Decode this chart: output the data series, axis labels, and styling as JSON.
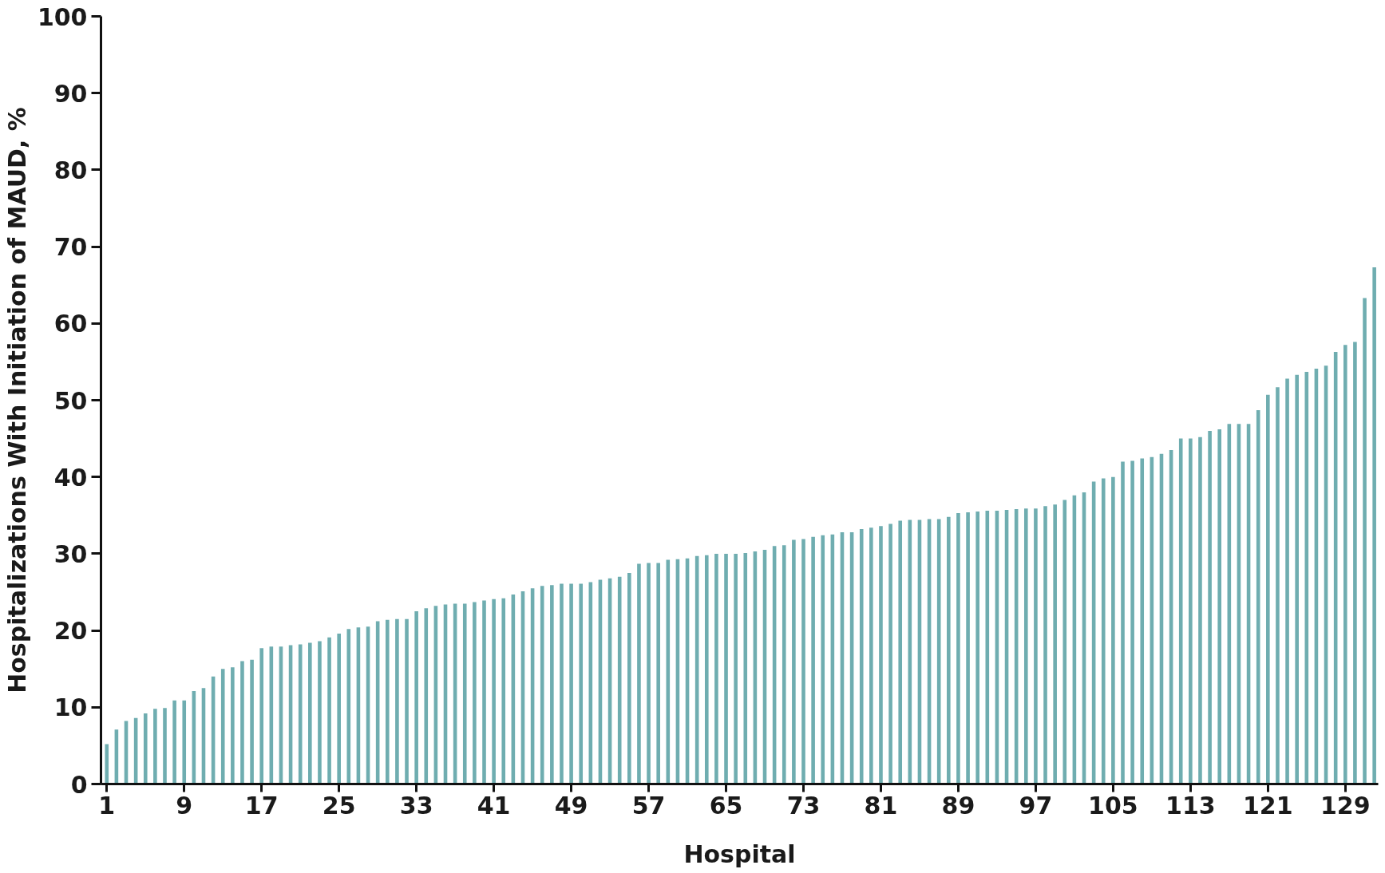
{
  "chart_data": {
    "type": "bar",
    "xlabel": "Hospital",
    "ylabel": "Hospitalizations With Initiation of MAUD, %",
    "x": [
      1,
      2,
      3,
      4,
      5,
      6,
      7,
      8,
      9,
      10,
      11,
      12,
      13,
      14,
      15,
      16,
      17,
      18,
      19,
      20,
      21,
      22,
      23,
      24,
      25,
      26,
      27,
      28,
      29,
      30,
      31,
      32,
      33,
      34,
      35,
      36,
      37,
      38,
      39,
      40,
      41,
      42,
      43,
      44,
      45,
      46,
      47,
      48,
      49,
      50,
      51,
      52,
      53,
      54,
      55,
      56,
      57,
      58,
      59,
      60,
      61,
      62,
      63,
      64,
      65,
      66,
      67,
      68,
      69,
      70,
      71,
      72,
      73,
      74,
      75,
      76,
      77,
      78,
      79,
      80,
      81,
      82,
      83,
      84,
      85,
      86,
      87,
      88,
      89,
      90,
      91,
      92,
      93,
      94,
      95,
      96,
      97,
      98,
      99,
      100,
      101,
      102,
      103,
      104,
      105,
      106,
      107,
      108,
      109,
      110,
      111,
      112,
      113,
      114,
      115,
      116,
      117,
      118,
      119,
      120,
      121,
      122,
      123,
      124,
      125,
      126,
      127,
      128,
      129,
      130,
      131,
      132
    ],
    "values": [
      5.2,
      7.1,
      8.2,
      8.6,
      9.2,
      9.8,
      9.9,
      10.9,
      10.9,
      12.1,
      12.5,
      14.0,
      15.0,
      15.2,
      16.0,
      16.2,
      17.7,
      17.9,
      17.9,
      18.1,
      18.2,
      18.4,
      18.6,
      19.1,
      19.6,
      20.2,
      20.4,
      20.5,
      21.2,
      21.4,
      21.5,
      21.5,
      22.5,
      22.9,
      23.2,
      23.4,
      23.5,
      23.5,
      23.7,
      23.9,
      24.1,
      24.2,
      24.7,
      25.1,
      25.5,
      25.8,
      25.9,
      26.1,
      26.1,
      26.1,
      26.3,
      26.6,
      26.8,
      27.0,
      27.5,
      28.7,
      28.8,
      28.8,
      29.2,
      29.3,
      29.4,
      29.7,
      29.8,
      30.0,
      30.0,
      30.0,
      30.1,
      30.3,
      30.5,
      31.0,
      31.1,
      31.8,
      31.9,
      32.2,
      32.4,
      32.5,
      32.8,
      32.8,
      33.2,
      33.4,
      33.6,
      33.9,
      34.3,
      34.4,
      34.4,
      34.5,
      34.5,
      34.8,
      35.3,
      35.4,
      35.5,
      35.6,
      35.6,
      35.7,
      35.8,
      35.9,
      35.9,
      36.2,
      36.4,
      37.0,
      37.6,
      38.0,
      39.4,
      39.8,
      40.0,
      42.0,
      42.1,
      42.4,
      42.6,
      43.0,
      43.5,
      45.0,
      45.0,
      45.2,
      46.0,
      46.2,
      46.9,
      46.9,
      46.9,
      48.7,
      50.7,
      51.7,
      52.8,
      53.3,
      53.7,
      54.1,
      54.5,
      56.3,
      57.2,
      57.6,
      63.3,
      67.3
    ],
    "color": "#6fadb0",
    "xlim": [
      0.4,
      132.4
    ],
    "xticks": [
      1,
      9,
      17,
      25,
      33,
      41,
      49,
      57,
      65,
      73,
      81,
      89,
      97,
      105,
      113,
      121,
      129
    ],
    "ylim": [
      0,
      100
    ],
    "yticks": [
      0,
      10,
      20,
      30,
      40,
      50,
      60,
      70,
      80,
      90,
      100
    ],
    "grid": false
  }
}
